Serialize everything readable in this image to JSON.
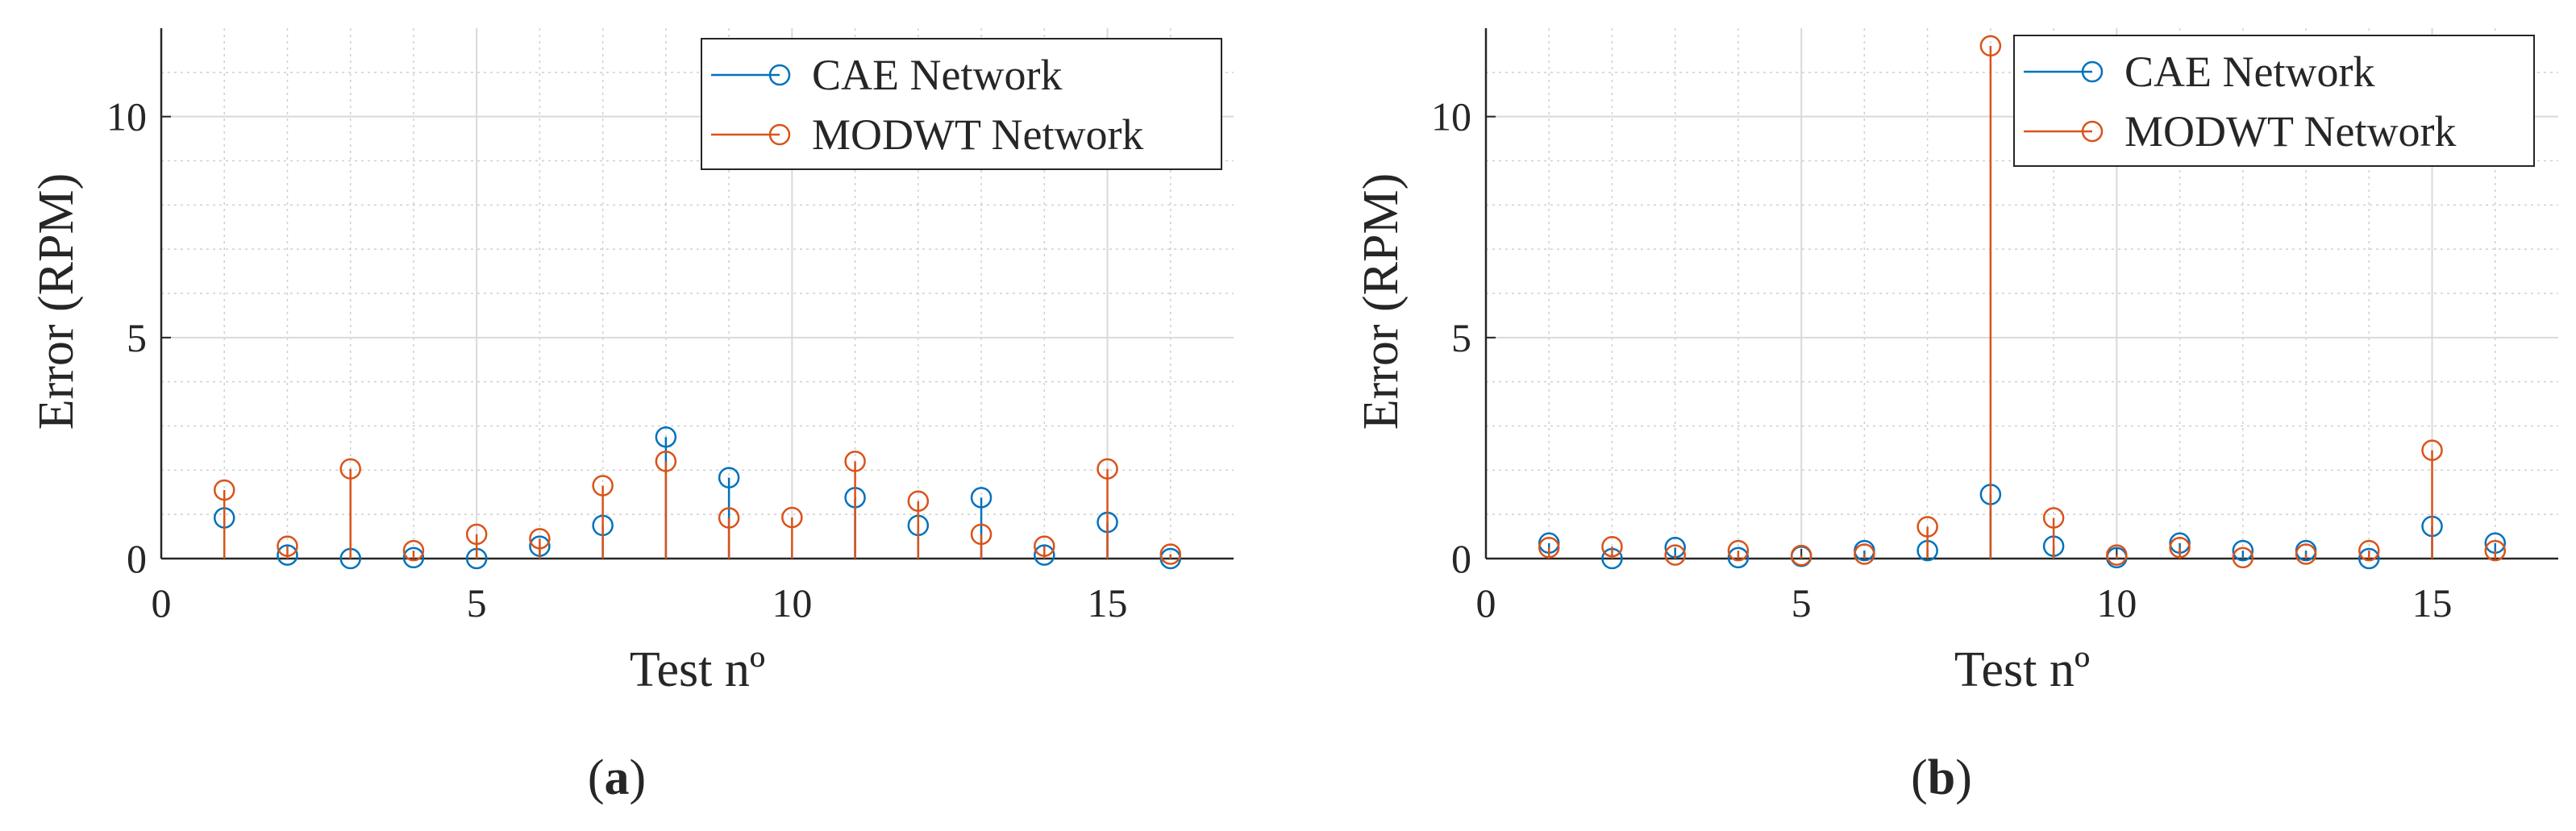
{
  "colors": {
    "cae": "#0072BD",
    "modwt": "#D95319",
    "grid": "#d9d9d9",
    "minor_grid": "#cfcfcf",
    "axis": "#262626"
  },
  "chart_data": [
    {
      "type": "stem",
      "caption": "(a)",
      "caption_letter": "a",
      "xlabel": "Test nº",
      "ylabel": "Error (RPM)",
      "xlim": [
        0,
        17
      ],
      "ylim": [
        0,
        12
      ],
      "xticks": [
        0,
        5,
        10,
        15
      ],
      "yticks": [
        0,
        5,
        10
      ],
      "grid": true,
      "minor_grid": true,
      "legend_position": "top-right",
      "x": [
        1,
        2,
        3,
        4,
        5,
        6,
        7,
        8,
        9,
        10,
        11,
        12,
        13,
        14,
        15,
        16
      ],
      "series": [
        {
          "name": "CAE Network",
          "color_key": "cae",
          "values": [
            0.92,
            0.08,
            0.0,
            0.02,
            0.0,
            0.28,
            0.75,
            2.75,
            1.83,
            null,
            1.38,
            0.75,
            1.38,
            0.08,
            0.82,
            0.0
          ]
        },
        {
          "name": "MODWT Network",
          "color_key": "modwt",
          "values": [
            1.55,
            0.28,
            2.03,
            0.18,
            0.55,
            0.45,
            1.65,
            2.2,
            0.92,
            0.93,
            2.2,
            1.3,
            0.55,
            0.28,
            2.03,
            0.1
          ]
        }
      ]
    },
    {
      "type": "stem",
      "caption": "(b)",
      "caption_letter": "b",
      "xlabel": "Test nº",
      "ylabel": "Error (RPM)",
      "xlim": [
        0,
        17
      ],
      "ylim": [
        0,
        12
      ],
      "xticks": [
        0,
        5,
        10,
        15
      ],
      "yticks": [
        0,
        5,
        10
      ],
      "grid": true,
      "minor_grid": true,
      "legend_position": "top-right",
      "x": [
        1,
        2,
        3,
        4,
        5,
        6,
        7,
        8,
        9,
        10,
        11,
        12,
        13,
        14,
        15,
        16
      ],
      "series": [
        {
          "name": "CAE Network",
          "color_key": "cae",
          "values": [
            0.35,
            0.0,
            0.25,
            0.02,
            0.05,
            0.18,
            0.18,
            1.45,
            0.28,
            0.02,
            0.35,
            0.18,
            0.18,
            0.0,
            0.73,
            0.35
          ]
        },
        {
          "name": "MODWT Network",
          "color_key": "modwt",
          "values": [
            0.25,
            0.27,
            0.08,
            0.18,
            0.07,
            0.1,
            0.72,
            11.6,
            0.92,
            0.08,
            0.25,
            0.02,
            0.1,
            0.18,
            2.45,
            0.18
          ]
        }
      ]
    }
  ]
}
